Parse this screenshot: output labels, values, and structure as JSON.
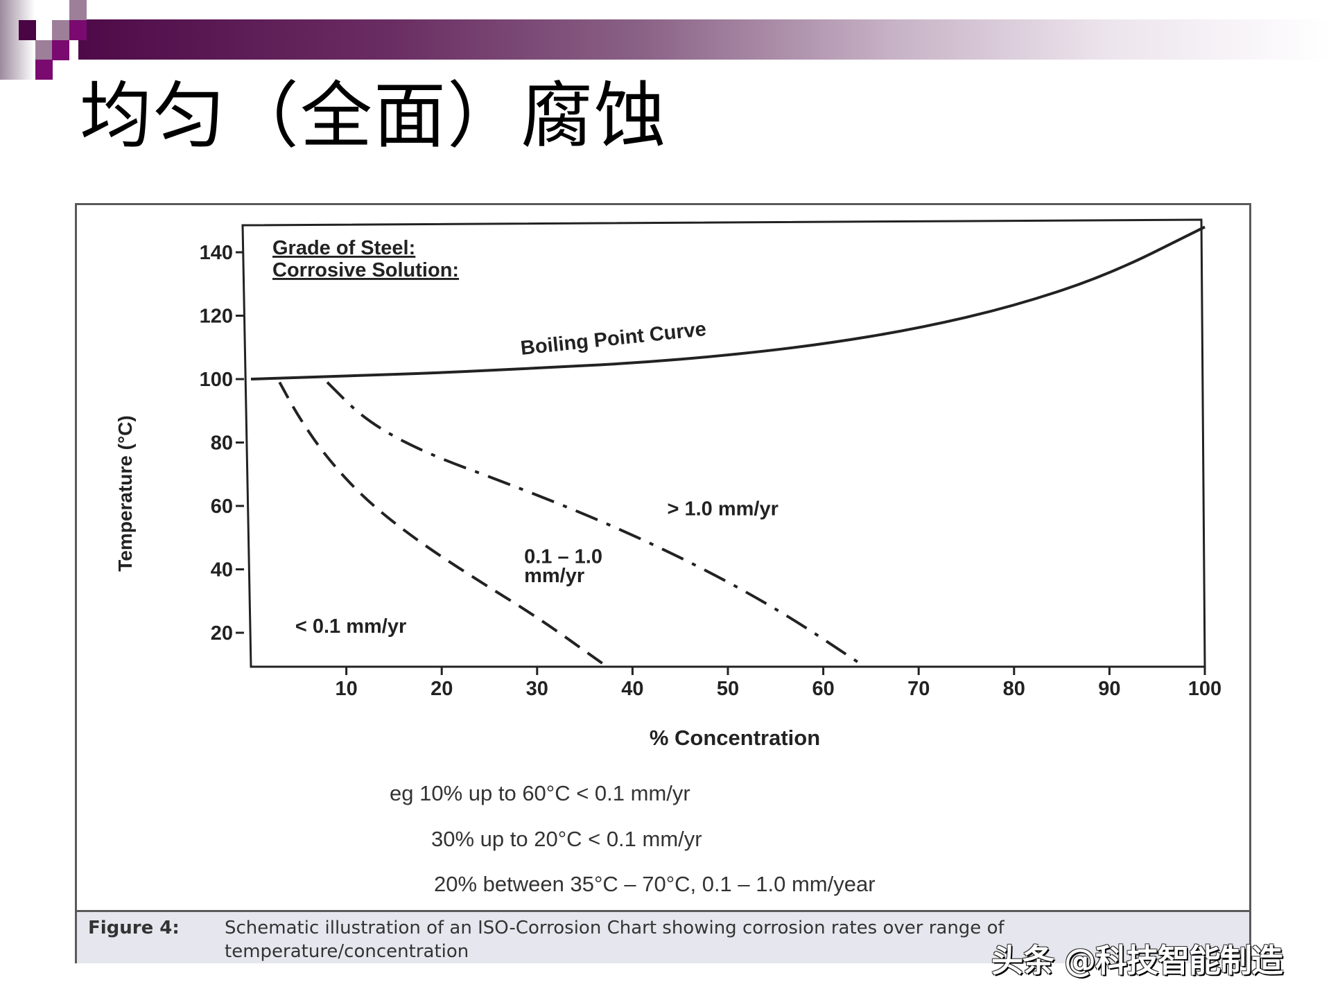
{
  "slide": {
    "title": "均匀（全面）腐蚀",
    "banner_colors": [
      "#4e0a48",
      "#7a0a6f",
      "#9d7f9a",
      "#ffffff"
    ]
  },
  "chart_header": {
    "line1": "Grade of Steel:",
    "line2": "Corrosive Solution:"
  },
  "notes": [
    "eg 10% up to 60°C < 0.1 mm/yr",
    "30% up to 20°C < 0.1 mm/yr",
    "20% between 35°C – 70°C, 0.1 – 1.0 mm/year"
  ],
  "caption": {
    "label": "Figure 4:",
    "text": "Schematic illustration of an ISO-Corrosion Chart showing corrosion rates over range of temperature/concentration"
  },
  "watermark": "头条 @科技智能制造",
  "chart_data": {
    "type": "line",
    "title": "ISO-Corrosion Chart",
    "xlabel": "% Concentration",
    "ylabel": "Temperature (°C)",
    "xlim": [
      0,
      100
    ],
    "ylim": [
      9,
      150
    ],
    "x_ticks": [
      10,
      20,
      30,
      40,
      50,
      60,
      70,
      80,
      90,
      100
    ],
    "y_ticks": [
      20,
      40,
      60,
      80,
      100,
      120,
      140
    ],
    "grid": false,
    "legend": "none (inline labels)",
    "series": [
      {
        "name": "Boiling Point Curve",
        "style": "solid",
        "label": "Boiling Point Curve",
        "x": [
          0,
          10,
          20,
          30,
          40,
          50,
          60,
          70,
          80,
          90,
          100
        ],
        "y": [
          100,
          101,
          102,
          103.5,
          105,
          107.5,
          111,
          116,
          123,
          133,
          148
        ]
      },
      {
        "name": "0.1 mm/yr iso-corrosion line",
        "style": "dashed",
        "x": [
          3,
          5,
          8,
          12,
          17,
          23,
          30,
          37
        ],
        "y": [
          99,
          88,
          75,
          62,
          50,
          38,
          25,
          10
        ]
      },
      {
        "name": "1.0 mm/yr iso-corrosion line",
        "style": "dash-dot",
        "x": [
          8,
          12,
          18,
          27,
          37,
          47,
          56,
          64
        ],
        "y": [
          99,
          87,
          77,
          67,
          55,
          41,
          26,
          10
        ]
      }
    ],
    "region_labels": [
      {
        "text": "< 0.1 mm/yr",
        "x": 9,
        "y": 20
      },
      {
        "text": "0.1 – 1.0",
        "x": 33,
        "y": 42
      },
      {
        "text": "mm/yr",
        "x": 33,
        "y": 36
      },
      {
        "text": "> 1.0 mm/yr",
        "x": 48,
        "y": 57
      }
    ]
  }
}
